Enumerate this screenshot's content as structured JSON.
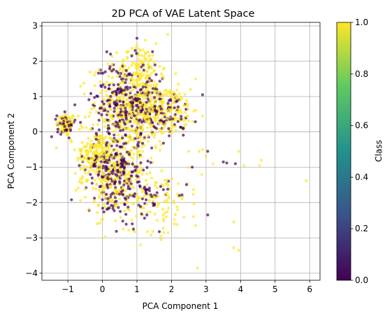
{
  "chart_data": {
    "type": "scatter",
    "title": "2D PCA of VAE Latent Space",
    "xlabel": "PCA Component 1",
    "ylabel": "PCA Component 2",
    "xlim": [
      -1.75,
      6.3
    ],
    "ylim": [
      -4.2,
      3.1
    ],
    "xticks": [
      -1,
      0,
      1,
      2,
      3,
      4,
      5,
      6
    ],
    "xtick_labels": [
      "−1",
      "0",
      "1",
      "2",
      "3",
      "4",
      "5",
      "6"
    ],
    "yticks": [
      -4,
      -3,
      -2,
      -1,
      0,
      1,
      2,
      3
    ],
    "ytick_labels": [
      "−4",
      "−3",
      "−2",
      "−1",
      "0",
      "1",
      "2",
      "3"
    ],
    "grid": true,
    "point_alpha": 0.7,
    "colormap": "viridis",
    "colormap_stops": [
      "#440154",
      "#3b528b",
      "#21918c",
      "#5ec962",
      "#fde725"
    ],
    "colorbar": {
      "label": "Class",
      "range": [
        0.0,
        1.0
      ],
      "ticks": [
        0.0,
        0.2,
        0.4,
        0.6,
        0.8,
        1.0
      ],
      "tick_labels": [
        "0.0",
        "0.2",
        "0.4",
        "0.6",
        "0.8",
        "1.0"
      ]
    },
    "series": [
      {
        "name": "",
        "class_value": 1.0,
        "color": "#fde725",
        "clusters": [
          {
            "center": [
              -1.05,
              0.2
            ],
            "spread": [
              0.14,
              0.17
            ],
            "n": 70
          },
          {
            "center": [
              -0.2,
              -0.6
            ],
            "spread": [
              0.28,
              0.32
            ],
            "n": 150
          },
          {
            "center": [
              0.35,
              -1.2
            ],
            "spread": [
              0.45,
              0.55
            ],
            "n": 260
          },
          {
            "center": [
              0.9,
              0.7
            ],
            "spread": [
              0.6,
              0.6
            ],
            "n": 420
          },
          {
            "center": [
              1.1,
              1.85
            ],
            "spread": [
              0.3,
              0.3
            ],
            "n": 90
          },
          {
            "center": [
              1.8,
              0.6
            ],
            "spread": [
              0.5,
              0.35
            ],
            "n": 140
          },
          {
            "center": [
              1.5,
              -1.9
            ],
            "spread": [
              0.7,
              0.45
            ],
            "n": 110
          }
        ],
        "points": [
          {
            "x": 5.9,
            "y": -1.38
          },
          {
            "x": 4.55,
            "y": -0.95
          },
          {
            "x": 4.6,
            "y": -0.8
          },
          {
            "x": 4.1,
            "y": -0.95
          },
          {
            "x": 3.95,
            "y": -0.55
          },
          {
            "x": 3.8,
            "y": -3.28
          },
          {
            "x": 3.95,
            "y": -3.35
          },
          {
            "x": 3.8,
            "y": -2.55
          },
          {
            "x": 2.75,
            "y": -3.85
          },
          {
            "x": 2.9,
            "y": -0.5
          },
          {
            "x": 2.8,
            "y": -0.55
          },
          {
            "x": 2.5,
            "y": -0.55
          },
          {
            "x": 3.0,
            "y": -0.7
          },
          {
            "x": 2.7,
            "y": -2.65
          },
          {
            "x": 1.9,
            "y": -2.85
          },
          {
            "x": 1.7,
            "y": -3.05
          },
          {
            "x": 1.1,
            "y": -3.2
          },
          {
            "x": 2.2,
            "y": 1.35
          },
          {
            "x": 2.55,
            "y": 1.2
          },
          {
            "x": 2.9,
            "y": 0.45
          },
          {
            "x": 2.3,
            "y": -1.9
          },
          {
            "x": 0.6,
            "y": -2.75
          },
          {
            "x": -0.15,
            "y": -2.6
          },
          {
            "x": -0.7,
            "y": 0.45
          },
          {
            "x": 3.2,
            "y": -0.9
          },
          {
            "x": 2.45,
            "y": 0.8
          },
          {
            "x": 1.25,
            "y": 2.6
          },
          {
            "x": 1.55,
            "y": 2.5
          },
          {
            "x": 0.7,
            "y": 2.25
          },
          {
            "x": 1.0,
            "y": 2.45
          }
        ]
      },
      {
        "name": "",
        "class_value": 0.0,
        "color": "#440154",
        "clusters": [
          {
            "center": [
              -1.05,
              0.2
            ],
            "spread": [
              0.13,
              0.16
            ],
            "n": 45
          },
          {
            "center": [
              0.35,
              -1.0
            ],
            "spread": [
              0.42,
              0.5
            ],
            "n": 230
          },
          {
            "center": [
              0.7,
              0.9
            ],
            "spread": [
              0.5,
              0.55
            ],
            "n": 260
          },
          {
            "center": [
              1.7,
              0.5
            ],
            "spread": [
              0.45,
              0.35
            ],
            "n": 90
          },
          {
            "center": [
              1.0,
              -1.9
            ],
            "spread": [
              0.5,
              0.35
            ],
            "n": 70
          }
        ],
        "points": [
          {
            "x": 3.5,
            "y": -0.85
          },
          {
            "x": 3.6,
            "y": -0.88
          },
          {
            "x": 3.05,
            "y": -0.55
          },
          {
            "x": 3.05,
            "y": -2.35
          },
          {
            "x": 3.85,
            "y": -0.9
          },
          {
            "x": 2.9,
            "y": 1.05
          },
          {
            "x": 1.0,
            "y": 2.65
          },
          {
            "x": 0.95,
            "y": 2.3
          },
          {
            "x": 0.85,
            "y": 2.15
          },
          {
            "x": 2.6,
            "y": -1.0
          },
          {
            "x": 0.9,
            "y": -2.75
          }
        ]
      }
    ]
  }
}
